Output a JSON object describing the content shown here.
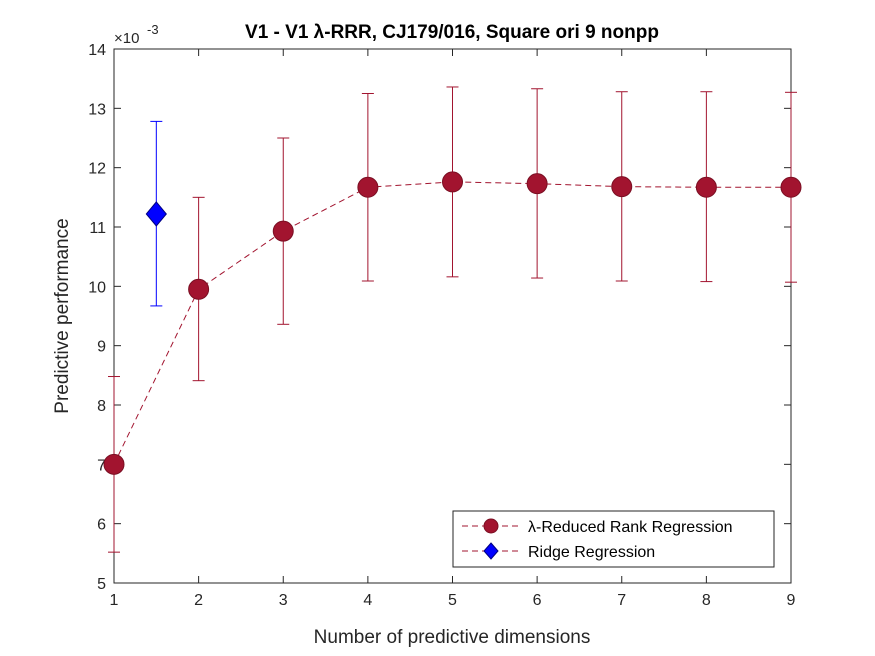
{
  "chart_data": {
    "type": "scatter",
    "title": "V1 - V1 λ-RRR, CJ179/016, Square ori 9 nonpp",
    "xlabel": "Number of predictive dimensions",
    "ylabel": "Predictive performance",
    "y_multiplier": "×10",
    "y_exponent": "-3",
    "xlim": [
      1,
      9
    ],
    "ylim": [
      5,
      14
    ],
    "xticks": [
      1,
      2,
      3,
      4,
      5,
      6,
      7,
      8,
      9
    ],
    "yticks": [
      5,
      6,
      7,
      8,
      9,
      10,
      11,
      12,
      13,
      14
    ],
    "grid": false,
    "legend_position": "bottom-right",
    "series": [
      {
        "name": "λ-Reduced Rank Regression",
        "color": "#A2142F",
        "marker": "circle",
        "line": "dashed",
        "x": [
          1,
          2,
          3,
          4,
          5,
          6,
          7,
          8,
          9
        ],
        "y": [
          7.0,
          9.95,
          10.93,
          11.67,
          11.76,
          11.73,
          11.68,
          11.67,
          11.67
        ],
        "err_low": [
          5.52,
          8.41,
          9.36,
          10.09,
          10.16,
          10.14,
          10.09,
          10.08,
          10.07
        ],
        "err_high": [
          8.48,
          11.5,
          12.5,
          13.25,
          13.36,
          13.33,
          13.28,
          13.28,
          13.27
        ]
      },
      {
        "name": "Ridge Regression",
        "color": "#0000FF",
        "marker": "diamond",
        "line": "none",
        "x": [
          1.5
        ],
        "y": [
          11.22
        ],
        "err_low": [
          9.67
        ],
        "err_high": [
          12.78
        ]
      }
    ]
  }
}
